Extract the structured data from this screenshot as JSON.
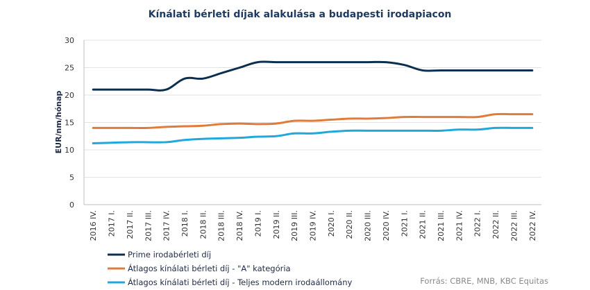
{
  "chart_data": {
    "type": "line",
    "title": "Kínálati bérleti díjak alakulása a budapesti irodapiacon",
    "ylabel": "EUR/nm/hónap",
    "xlabel": "",
    "ylim": [
      0,
      30
    ],
    "yticks": [
      0,
      5,
      10,
      15,
      20,
      25,
      30
    ],
    "grid": "horizontal",
    "legend_position": "bottom-left",
    "categories": [
      "2016 IV.",
      "2017 I.",
      "2017 II.",
      "2017 III.",
      "2017 IV.",
      "2018 I.",
      "2018 II.",
      "2018 III.",
      "2018 IV.",
      "2019 I.",
      "2019 II.",
      "2019 III.",
      "2019 IV.",
      "2020 I.",
      "2020 II.",
      "2020 III.",
      "2020 IV.",
      "2021 I.",
      "2021 II.",
      "2021 III.",
      "2021 IV.",
      "2022 I.",
      "2022 II.",
      "2022 III.",
      "2022 IV."
    ],
    "series": [
      {
        "name": "Prime irodabérleti díj",
        "color": "#0d2f4f",
        "values": [
          21,
          21,
          21,
          21,
          21,
          23,
          23,
          24,
          25,
          26,
          26,
          26,
          26,
          26,
          26,
          26,
          26,
          25.5,
          24.5,
          24.5,
          24.5,
          24.5,
          24.5,
          24.5,
          24.5
        ]
      },
      {
        "name": "Átlagos kínálati bérleti díj - \"A\" kategória",
        "color": "#e07b39",
        "values": [
          14,
          14,
          14,
          14,
          14.2,
          14.3,
          14.4,
          14.7,
          14.8,
          14.7,
          14.8,
          15.3,
          15.3,
          15.5,
          15.7,
          15.7,
          15.8,
          16,
          16,
          16,
          16,
          16,
          16.5,
          16.5,
          16.5
        ]
      },
      {
        "name": "Átlagos kínálati bérleti díj - Teljes modern irodaállomány",
        "color": "#1fa8d9",
        "values": [
          11.2,
          11.3,
          11.4,
          11.4,
          11.4,
          11.8,
          12,
          12.1,
          12.2,
          12.4,
          12.5,
          13,
          13,
          13.3,
          13.5,
          13.5,
          13.5,
          13.5,
          13.5,
          13.5,
          13.7,
          13.7,
          14,
          14,
          14
        ]
      }
    ]
  },
  "source": "Forrás: CBRE, MNB, KBC Equitas"
}
